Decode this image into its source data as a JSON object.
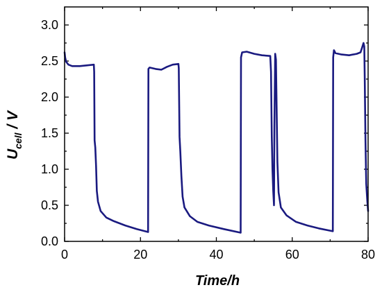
{
  "chart_data": {
    "type": "line",
    "title": "",
    "xlabel": "Time/h",
    "ylabel": {
      "main": "U",
      "sub": "cell",
      "rest": " / V"
    },
    "xlim": [
      0,
      80
    ],
    "ylim": [
      0,
      3.25
    ],
    "x_ticks": [
      "0",
      "20",
      "40",
      "60",
      "80"
    ],
    "y_ticks": [
      "0.0",
      "0.5",
      "1.0",
      "1.5",
      "2.0",
      "2.5",
      "3.0"
    ],
    "grid": false,
    "legend": "none",
    "series": [
      {
        "color": "#1a1a80",
        "points": [
          [
            0.0,
            2.62
          ],
          [
            0.15,
            2.55
          ],
          [
            0.4,
            2.49
          ],
          [
            1.0,
            2.45
          ],
          [
            2.0,
            2.43
          ],
          [
            4.0,
            2.43
          ],
          [
            6.0,
            2.44
          ],
          [
            7.7,
            2.45
          ],
          [
            7.8,
            2.35
          ],
          [
            7.9,
            1.4
          ],
          [
            8.1,
            1.3
          ],
          [
            8.3,
            1.05
          ],
          [
            8.5,
            0.7
          ],
          [
            8.8,
            0.55
          ],
          [
            9.5,
            0.42
          ],
          [
            11.0,
            0.33
          ],
          [
            13.0,
            0.28
          ],
          [
            16.0,
            0.22
          ],
          [
            19.0,
            0.17
          ],
          [
            22.0,
            0.13
          ],
          [
            22.1,
            2.39
          ],
          [
            22.4,
            2.41
          ],
          [
            24.0,
            2.39
          ],
          [
            25.5,
            2.38
          ],
          [
            27.0,
            2.42
          ],
          [
            28.5,
            2.45
          ],
          [
            30.0,
            2.46
          ],
          [
            30.1,
            2.4
          ],
          [
            30.3,
            1.45
          ],
          [
            30.5,
            1.25
          ],
          [
            30.8,
            0.9
          ],
          [
            31.1,
            0.62
          ],
          [
            31.6,
            0.47
          ],
          [
            33.0,
            0.35
          ],
          [
            35.0,
            0.27
          ],
          [
            38.0,
            0.22
          ],
          [
            42.0,
            0.17
          ],
          [
            46.4,
            0.12
          ],
          [
            46.5,
            2.55
          ],
          [
            46.8,
            2.62
          ],
          [
            48.0,
            2.63
          ],
          [
            50.0,
            2.6
          ],
          [
            52.0,
            2.58
          ],
          [
            54.2,
            2.57
          ],
          [
            54.4,
            2.35
          ],
          [
            54.6,
            1.45
          ],
          [
            54.8,
            1.0
          ],
          [
            55.0,
            0.7
          ],
          [
            55.2,
            0.5
          ],
          [
            55.3,
            1.6
          ],
          [
            55.5,
            2.6
          ],
          [
            55.7,
            2.52
          ],
          [
            56.1,
            1.1
          ],
          [
            56.4,
            0.68
          ],
          [
            57.0,
            0.47
          ],
          [
            58.5,
            0.36
          ],
          [
            61.0,
            0.27
          ],
          [
            64.0,
            0.22
          ],
          [
            67.0,
            0.18
          ],
          [
            70.7,
            0.14
          ],
          [
            70.8,
            2.55
          ],
          [
            71.0,
            2.65
          ],
          [
            71.4,
            2.61
          ],
          [
            73.0,
            2.59
          ],
          [
            75.0,
            2.58
          ],
          [
            77.0,
            2.6
          ],
          [
            78.0,
            2.62
          ],
          [
            78.5,
            2.7
          ],
          [
            78.8,
            2.75
          ],
          [
            79.0,
            2.7
          ],
          [
            79.1,
            2.3
          ],
          [
            79.3,
            1.4
          ],
          [
            79.5,
            0.8
          ],
          [
            79.8,
            0.55
          ],
          [
            80.0,
            0.42
          ]
        ]
      }
    ]
  }
}
